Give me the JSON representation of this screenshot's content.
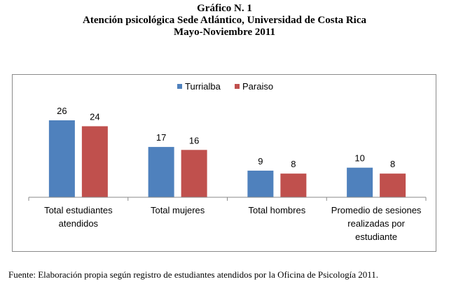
{
  "titles": {
    "line1": "Gráfico N. 1",
    "line2": "Atención psicológica Sede Atlántico, Universidad de Costa Rica",
    "line3": "Mayo-Noviembre 2011"
  },
  "source": "Fuente: Elaboración propia según registro de estudiantes atendidos por  la Oficina de Psicología 2011.",
  "colors": {
    "turrialba": "#4f81bd",
    "paraiso": "#c0504d"
  },
  "chart_data": {
    "type": "bar",
    "categories": [
      [
        "Total estudiantes",
        "atendidos"
      ],
      [
        "Total mujeres"
      ],
      [
        "Total hombres"
      ],
      [
        "Promedio de sesiones",
        "realizadas por",
        "estudiante"
      ]
    ],
    "series": [
      {
        "name": "Turrialba",
        "values": [
          26,
          17,
          9,
          10
        ]
      },
      {
        "name": "Paraiso",
        "values": [
          24,
          16,
          8,
          8
        ]
      }
    ],
    "ylim": [
      0,
      26
    ],
    "legend": "top-center",
    "grid": false,
    "data_labels": true
  }
}
